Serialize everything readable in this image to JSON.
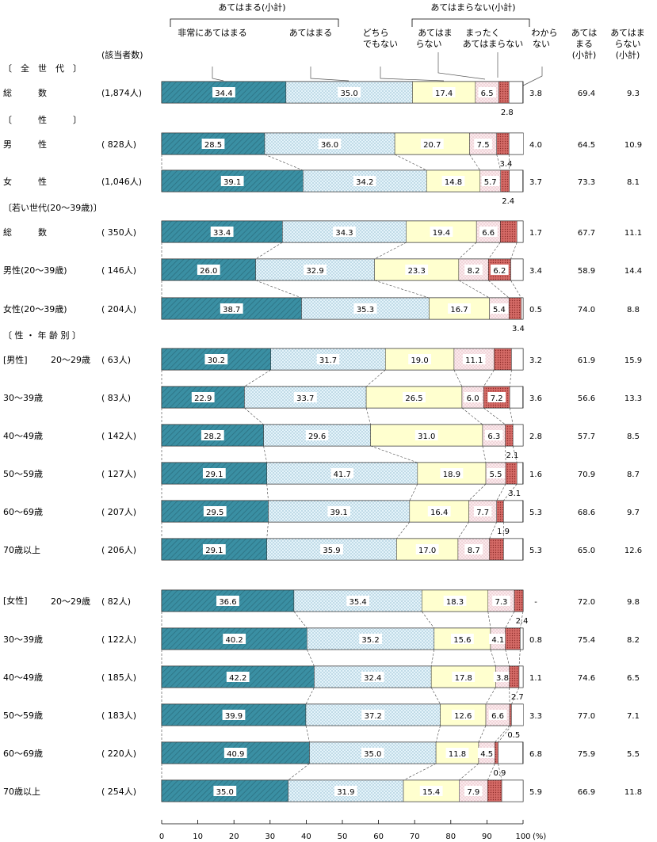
{
  "chart_data": {
    "type": "bar",
    "stacked": true,
    "orientation": "horizontal",
    "unit": "(%)",
    "series_names": [
      "非常にあてはまる",
      "あてはまる",
      "どちらでもない",
      "あてはまらない",
      "まったくあてはまらない",
      "わからない"
    ],
    "series_colors": [
      "#3a8fa3",
      "#dff0f8",
      "#ffffd2",
      "#fae8ea",
      "#cf5a58",
      "#ffffff"
    ],
    "header": {
      "group_apply": "あてはまる(小計)",
      "group_not": "あてはまらない(小計)",
      "col_very": "非常にあてはまる",
      "col_apply": "あてはまる",
      "col_neither": [
        "どちら",
        "でもない"
      ],
      "col_not": [
        "あてはま",
        "らない"
      ],
      "col_never": [
        "まったく",
        "あてはまらない"
      ],
      "col_dunno": [
        "わから",
        "ない"
      ],
      "col_sum_apply": [
        "あては",
        "まる",
        "(小計)"
      ],
      "col_sum_not": [
        "あてはま",
        "らない",
        "(小計)"
      ],
      "count_header": "(該当者数)"
    },
    "x_ticks": [
      0,
      10,
      20,
      30,
      40,
      50,
      60,
      70,
      80,
      90,
      100
    ],
    "xlim": [
      0,
      100
    ],
    "section_labels": [
      {
        "label": "〔　全　世　代　〕",
        "before_row": 0
      },
      {
        "label": "〔　　　性　　　〕",
        "before_row": 1
      },
      {
        "label": "〔若い世代(20～39歳)〕",
        "before_row": 3
      },
      {
        "label": "〔 性 ・ 年 齢 別 〕",
        "before_row": 6
      }
    ],
    "rows": [
      {
        "label": "総　　　数",
        "count": "(1,874人)",
        "values": [
          34.4,
          35.0,
          17.4,
          6.5,
          2.8,
          3.8
        ],
        "subtotal_apply": "69.4",
        "subtotal_not": "9.3"
      },
      {
        "label": "男　　　性",
        "count": "( 828人)",
        "values": [
          28.5,
          36.0,
          20.7,
          7.5,
          3.4,
          4.0
        ],
        "subtotal_apply": "64.5",
        "subtotal_not": "10.9"
      },
      {
        "label": "女　　　性",
        "count": "(1,046人)",
        "values": [
          39.1,
          34.2,
          14.8,
          5.7,
          2.4,
          3.7
        ],
        "subtotal_apply": "73.3",
        "subtotal_not": "8.1"
      },
      {
        "label": "総　　　数",
        "count": "( 350人)",
        "values": [
          33.4,
          34.3,
          19.4,
          6.6,
          4.6,
          1.7
        ],
        "subtotal_apply": "67.7",
        "subtotal_not": "11.1"
      },
      {
        "label": "男性(20～39歳)",
        "count": "( 146人)",
        "values": [
          26.0,
          32.9,
          23.3,
          8.2,
          6.2,
          3.4
        ],
        "subtotal_apply": "58.9",
        "subtotal_not": "14.4"
      },
      {
        "label": "女性(20～39歳)",
        "count": "( 204人)",
        "values": [
          38.7,
          35.3,
          16.7,
          5.4,
          3.4,
          0.5
        ],
        "subtotal_apply": "74.0",
        "subtotal_not": "8.8"
      },
      {
        "group": "[男性]",
        "label": "20～29歳",
        "count": "(  63人)",
        "values": [
          30.2,
          31.7,
          19.0,
          11.1,
          4.8,
          3.2
        ],
        "subtotal_apply": "61.9",
        "subtotal_not": "15.9"
      },
      {
        "label": "30～39歳",
        "count": "(  83人)",
        "values": [
          22.9,
          33.7,
          26.5,
          6.0,
          7.2,
          3.6
        ],
        "subtotal_apply": "56.6",
        "subtotal_not": "13.3"
      },
      {
        "label": "40～49歳",
        "count": "( 142人)",
        "values": [
          28.2,
          29.6,
          31.0,
          6.3,
          2.1,
          2.8
        ],
        "subtotal_apply": "57.7",
        "subtotal_not": "8.5"
      },
      {
        "label": "50～59歳",
        "count": "( 127人)",
        "values": [
          29.1,
          41.7,
          18.9,
          5.5,
          3.1,
          1.6
        ],
        "subtotal_apply": "70.9",
        "subtotal_not": "8.7"
      },
      {
        "label": "60～69歳",
        "count": "( 207人)",
        "values": [
          29.5,
          39.1,
          16.4,
          7.7,
          1.9,
          5.3
        ],
        "subtotal_apply": "68.6",
        "subtotal_not": "9.7"
      },
      {
        "label": "70歳以上",
        "count": "( 206人)",
        "values": [
          29.1,
          35.9,
          17.0,
          8.7,
          3.9,
          5.3
        ],
        "subtotal_apply": "65.0",
        "subtotal_not": "12.6"
      },
      {
        "group": "[女性]",
        "label": "20～29歳",
        "count": "(  82人)",
        "values": [
          36.6,
          35.4,
          18.3,
          7.3,
          2.4,
          null
        ],
        "subtotal_apply": "72.0",
        "subtotal_not": "9.8"
      },
      {
        "label": "30～39歳",
        "count": "( 122人)",
        "values": [
          40.2,
          35.2,
          15.6,
          4.1,
          4.1,
          0.8
        ],
        "subtotal_apply": "75.4",
        "subtotal_not": "8.2"
      },
      {
        "label": "40～49歳",
        "count": "( 185人)",
        "values": [
          42.2,
          32.4,
          17.8,
          3.8,
          2.7,
          1.1
        ],
        "subtotal_apply": "74.6",
        "subtotal_not": "6.5"
      },
      {
        "label": "50～59歳",
        "count": "( 183人)",
        "values": [
          39.9,
          37.2,
          12.6,
          6.6,
          0.5,
          3.3
        ],
        "subtotal_apply": "77.0",
        "subtotal_not": "7.1"
      },
      {
        "label": "60～69歳",
        "count": "( 220人)",
        "values": [
          40.9,
          35.0,
          11.8,
          4.5,
          0.9,
          6.8
        ],
        "subtotal_apply": "75.9",
        "subtotal_not": "5.5"
      },
      {
        "label": "70歳以上",
        "count": "( 254人)",
        "values": [
          35.0,
          31.9,
          15.4,
          7.9,
          3.9,
          5.9
        ],
        "subtotal_apply": "66.9",
        "subtotal_not": "11.8"
      }
    ],
    "dash_label": "-"
  }
}
